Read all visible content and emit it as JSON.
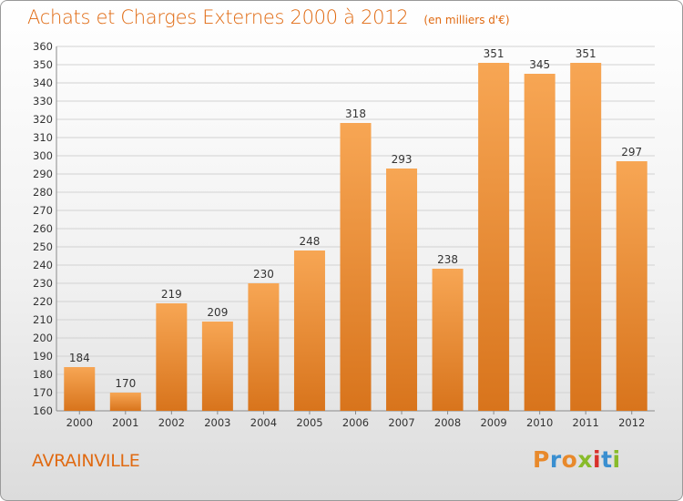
{
  "header": {
    "title": "Achats et Charges Externes 2000 à 2012",
    "unit": "(en milliers d'€)"
  },
  "footer": {
    "town": "AVRAINVILLE",
    "brand": "Proxiti",
    "brand_colors": [
      "#e8892b",
      "#3a8fd0",
      "#e8892b",
      "#88bb2a",
      "#d8302b",
      "#3a8fd0",
      "#88bb2a"
    ]
  },
  "colors": {
    "bar_light": "#f7a654",
    "bar_dark": "#d8741c",
    "accent": "#e06a12",
    "grid": "#d2d2d2"
  },
  "chart_data": {
    "type": "bar",
    "categories": [
      "2000",
      "2001",
      "2002",
      "2003",
      "2004",
      "2005",
      "2006",
      "2007",
      "2008",
      "2009",
      "2010",
      "2011",
      "2012"
    ],
    "values": [
      184,
      170,
      219,
      209,
      230,
      248,
      318,
      293,
      238,
      351,
      345,
      351,
      297
    ],
    "ylim": [
      160,
      360
    ],
    "ytick_step": 10,
    "grid": true,
    "legend": "none",
    "xlabel": "",
    "ylabel": ""
  }
}
